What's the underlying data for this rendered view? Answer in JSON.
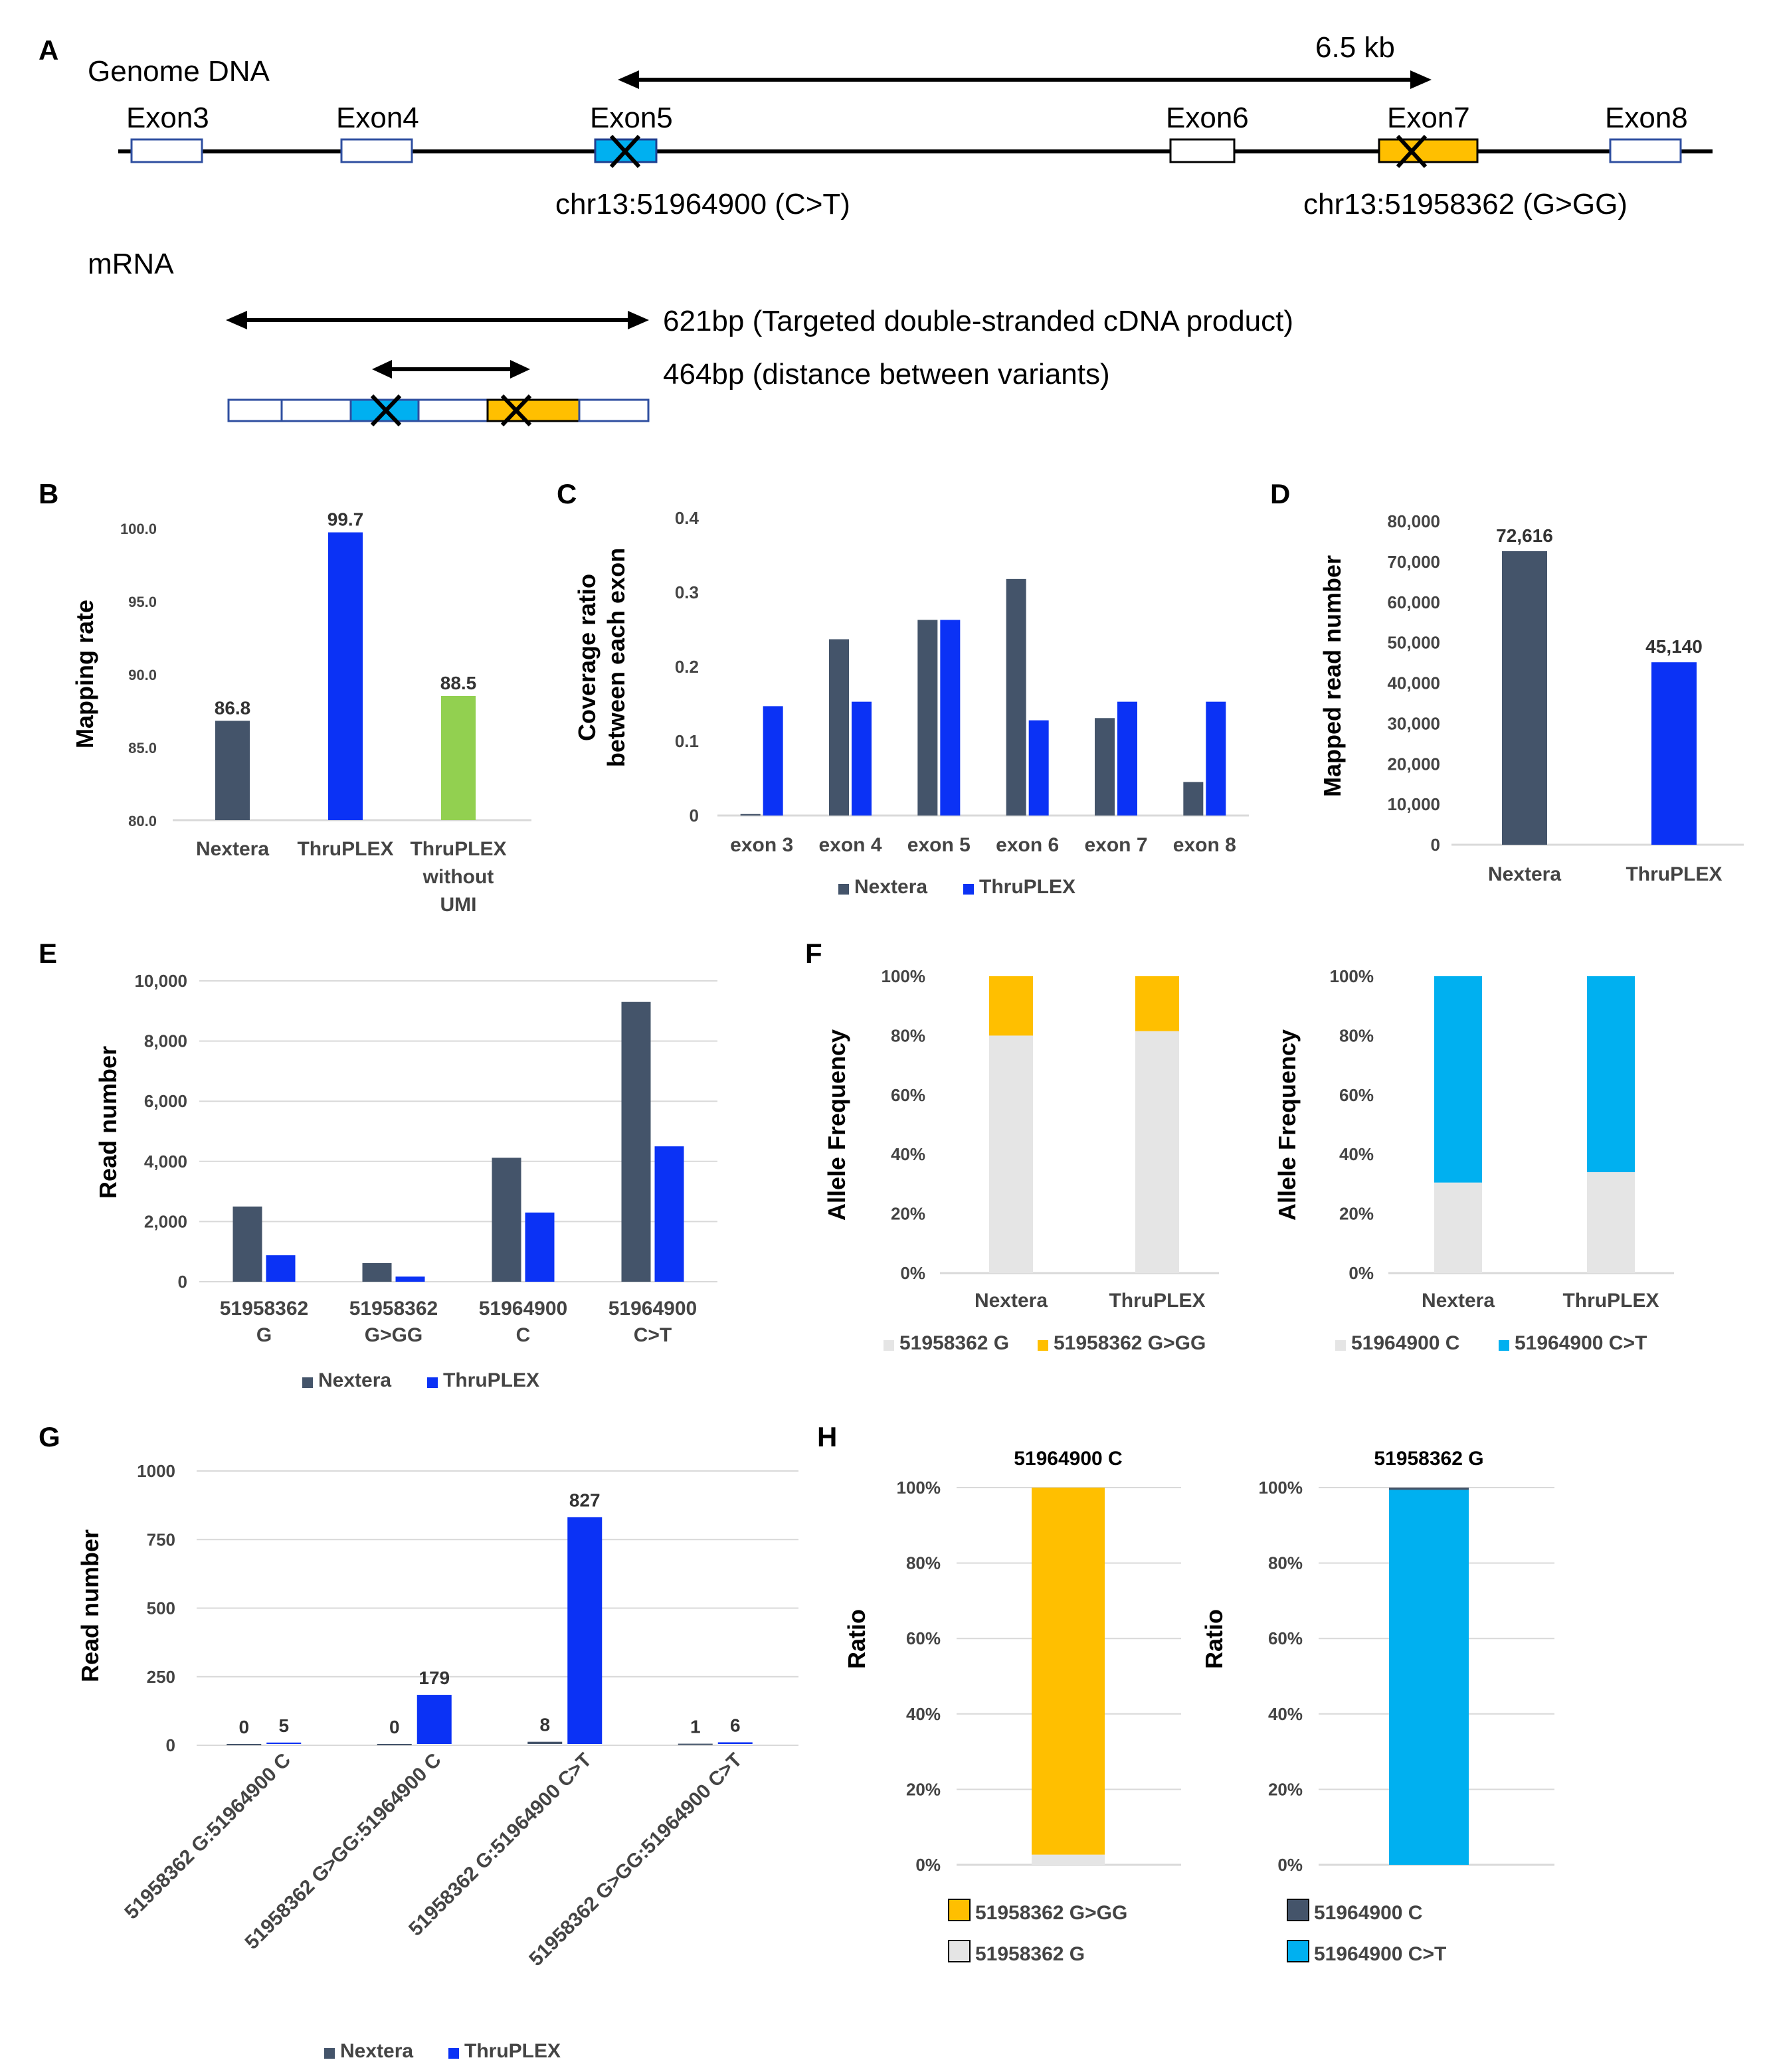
{
  "colors": {
    "nextera": "#44546a",
    "thruplex": "#0b32f5",
    "green": "#92d050",
    "lightgray": "#e5e5e5",
    "orange": "#ffbf00",
    "cyan": "#00b0f0",
    "grid": "#d9d9d9"
  },
  "panelA": {
    "letter": "A",
    "genome_label": "Genome DNA",
    "distance_label": "6.5 kb",
    "exons": [
      "Exon3",
      "Exon4",
      "Exon5",
      "Exon6",
      "Exon7",
      "Exon8"
    ],
    "variant1": "chr13:51964900 (C>T)",
    "variant2": "chr13:51958362 (G>GG)",
    "mrna_label": "mRNA",
    "product_label": "621bp (Targeted double-stranded cDNA product)",
    "variant_distance_label": "464bp (distance between variants)"
  },
  "chart_data": [
    {
      "panel": "B",
      "type": "bar",
      "ylabel": "Mapping rate",
      "categories": [
        "Nextera",
        "ThruPLEX",
        "ThruPLEX without UMI"
      ],
      "cat_lines": [
        [
          "Nextera"
        ],
        [
          "ThruPLEX"
        ],
        [
          "ThruPLEX",
          "without",
          "UMI"
        ]
      ],
      "values": [
        86.8,
        99.7,
        88.5
      ],
      "data_labels": [
        "86.8",
        "99.7",
        "88.5"
      ],
      "colors": [
        "#44546a",
        "#0b32f5",
        "#92d050"
      ],
      "ylim": [
        80,
        100
      ],
      "yticks": [
        80,
        85,
        90,
        95,
        100
      ],
      "ytick_labels": [
        "80.0",
        "85.0",
        "90.0",
        "95.0",
        "100.0"
      ]
    },
    {
      "panel": "C",
      "type": "bar",
      "ylabel_lines": [
        "Coverage ratio",
        "between each exon"
      ],
      "categories": [
        "exon 3",
        "exon 4",
        "exon 5",
        "exon 6",
        "exon 7",
        "exon 8"
      ],
      "series": [
        {
          "name": "Nextera",
          "values": [
            0.002,
            0.237,
            0.263,
            0.318,
            0.131,
            0.045
          ]
        },
        {
          "name": "ThruPLEX",
          "values": [
            0.147,
            0.153,
            0.263,
            0.128,
            0.153,
            0.153
          ]
        }
      ],
      "ylim": [
        0,
        0.4
      ],
      "yticks": [
        0,
        0.1,
        0.2,
        0.3,
        0.4
      ],
      "ytick_labels": [
        "0",
        "0.1",
        "0.2",
        "0.3",
        "0.4"
      ],
      "legend": [
        "Nextera",
        "ThruPLEX"
      ]
    },
    {
      "panel": "D",
      "type": "bar",
      "ylabel": "Mapped read number",
      "categories": [
        "Nextera",
        "ThruPLEX"
      ],
      "values": [
        72616,
        45140
      ],
      "data_labels": [
        "72,616",
        "45,140"
      ],
      "ylim": [
        0,
        80000
      ],
      "yticks": [
        0,
        10000,
        20000,
        30000,
        40000,
        50000,
        60000,
        70000,
        80000
      ],
      "ytick_labels": [
        "0",
        "10,000",
        "20,000",
        "30,000",
        "40,000",
        "50,000",
        "60,000",
        "70,000",
        "80,000"
      ]
    },
    {
      "panel": "E",
      "type": "bar",
      "ylabel": "Read number",
      "categories": [
        "51958362 G",
        "51958362 G>GG",
        "51964900 C",
        "51964900 C>T"
      ],
      "cat_lines": [
        [
          "51958362",
          "G"
        ],
        [
          "51958362",
          "G>GG"
        ],
        [
          "51964900",
          "C"
        ],
        [
          "51964900",
          "C>T"
        ]
      ],
      "series": [
        {
          "name": "Nextera",
          "values": [
            2500,
            620,
            4120,
            9300
          ]
        },
        {
          "name": "ThruPLEX",
          "values": [
            880,
            170,
            2300,
            4500
          ]
        }
      ],
      "ylim": [
        0,
        10000
      ],
      "yticks": [
        0,
        2000,
        4000,
        6000,
        8000,
        10000
      ],
      "ytick_labels": [
        "0",
        "2,000",
        "4,000",
        "6,000",
        "8,000",
        "10,000"
      ],
      "legend": [
        "Nextera",
        "ThruPLEX"
      ]
    },
    {
      "panel": "F-left",
      "type": "bar",
      "stacked": true,
      "ylabel": "Allele Frequency",
      "categories": [
        "Nextera",
        "ThruPLEX"
      ],
      "series": [
        {
          "name": "51958362 G",
          "values": [
            80,
            81.5
          ]
        },
        {
          "name": "51958362 G>GG",
          "values": [
            20,
            18.5
          ]
        }
      ],
      "ylim": [
        0,
        100
      ],
      "yticks": [
        0,
        20,
        40,
        60,
        80,
        100
      ],
      "ytick_labels": [
        "0%",
        "20%",
        "40%",
        "60%",
        "80%",
        "100%"
      ],
      "legend": [
        "51958362 G",
        "51958362 G>GG"
      ]
    },
    {
      "panel": "F-right",
      "type": "bar",
      "stacked": true,
      "ylabel": "Allele Frequency",
      "categories": [
        "Nextera",
        "ThruPLEX"
      ],
      "series": [
        {
          "name": "51964900 C",
          "values": [
            30.5,
            34
          ]
        },
        {
          "name": "51964900 C>T",
          "values": [
            69.5,
            66
          ]
        }
      ],
      "ylim": [
        0,
        100
      ],
      "yticks": [
        0,
        20,
        40,
        60,
        80,
        100
      ],
      "ytick_labels": [
        "0%",
        "20%",
        "40%",
        "60%",
        "80%",
        "100%"
      ],
      "legend": [
        "51964900 C",
        "51964900 C>T"
      ]
    },
    {
      "panel": "G",
      "type": "bar",
      "ylabel": "Read number",
      "categories": [
        "51958362 G:51964900 C",
        "51958362 G>GG:51964900 C",
        "51958362 G:51964900 C>T",
        "51958362 G>GG:51964900 C>T"
      ],
      "series": [
        {
          "name": "Nextera",
          "values": [
            0,
            0,
            8,
            1
          ]
        },
        {
          "name": "ThruPLEX",
          "values": [
            5,
            179,
            827,
            6
          ]
        }
      ],
      "data_labels": [
        [
          "0",
          "0",
          "8",
          "1"
        ],
        [
          "5",
          "179",
          "827",
          "6"
        ]
      ],
      "ylim": [
        0,
        1000
      ],
      "yticks": [
        0,
        250,
        500,
        750,
        1000
      ],
      "ytick_labels": [
        "0",
        "250",
        "500",
        "750",
        "1000"
      ],
      "legend": [
        "Nextera",
        "ThruPLEX"
      ]
    },
    {
      "panel": "H-left",
      "type": "bar",
      "stacked": true,
      "ylabel": "Ratio",
      "title": "51964900 C",
      "categories": [
        "51964900 C"
      ],
      "series": [
        {
          "name": "51958362 G",
          "values": [
            2.7
          ]
        },
        {
          "name": "51958362 G>GG",
          "values": [
            97.3
          ]
        }
      ],
      "ylim": [
        0,
        100
      ],
      "yticks": [
        0,
        20,
        40,
        60,
        80,
        100
      ],
      "ytick_labels": [
        "0%",
        "20%",
        "40%",
        "60%",
        "80%",
        "100%"
      ],
      "legend": [
        "51958362 G>GG",
        "51958362 G"
      ]
    },
    {
      "panel": "H-right",
      "type": "bar",
      "stacked": true,
      "ylabel": "Ratio",
      "title": "51958362 G",
      "categories": [
        "51958362 G"
      ],
      "series": [
        {
          "name": "51964900 C>T",
          "values": [
            99.4
          ]
        },
        {
          "name": "51964900 C",
          "values": [
            0.6
          ]
        }
      ],
      "ylim": [
        0,
        100
      ],
      "yticks": [
        0,
        20,
        40,
        60,
        80,
        100
      ],
      "ytick_labels": [
        "0%",
        "20%",
        "40%",
        "60%",
        "80%",
        "100%"
      ],
      "legend": [
        "51964900 C",
        "51964900 C>T"
      ]
    }
  ]
}
